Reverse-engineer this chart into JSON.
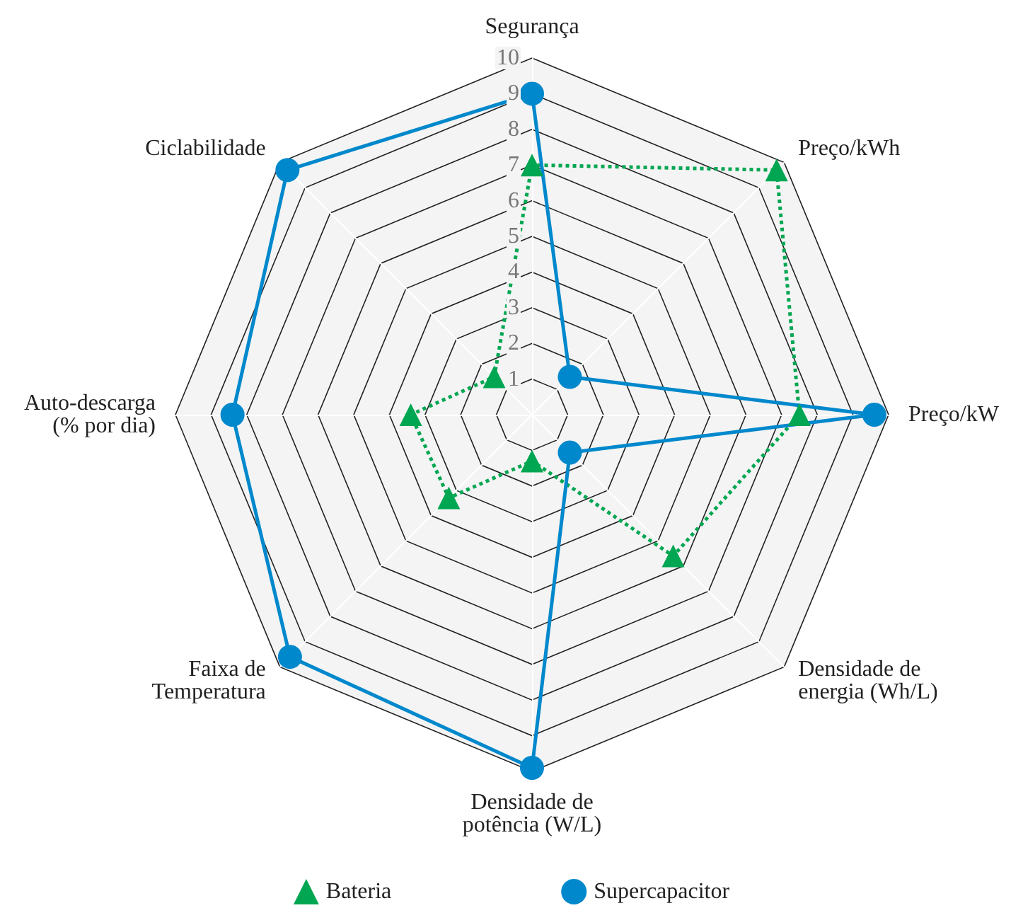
{
  "chart_data": {
    "type": "radar",
    "categories": [
      "Segurança",
      "Preço/kWh",
      "Preço/kW",
      "Densidade de\nenergia (Wh/L)",
      "Densidade de\npotência (W/L)",
      "Faixa de\nTemperatura",
      "Auto-descarga\n(% por dia)",
      "Ciclabilidade"
    ],
    "series": [
      {
        "name": "Bateria",
        "color": "#00a651",
        "marker": "triangle",
        "line_style": "dotted",
        "values": [
          7,
          9.7,
          7.5,
          5.6,
          1.3,
          3.3,
          3.4,
          1.5
        ]
      },
      {
        "name": "Supercapacitor",
        "color": "#0088cc",
        "marker": "circle",
        "line_style": "solid",
        "values": [
          9,
          1.5,
          9.6,
          1.5,
          9.9,
          9.6,
          8.4,
          9.7
        ]
      }
    ],
    "ylim": [
      0,
      10
    ],
    "yticks": [
      1,
      2,
      3,
      4,
      5,
      6,
      7,
      8,
      9,
      10
    ],
    "grid": true,
    "legend": "bottom"
  }
}
